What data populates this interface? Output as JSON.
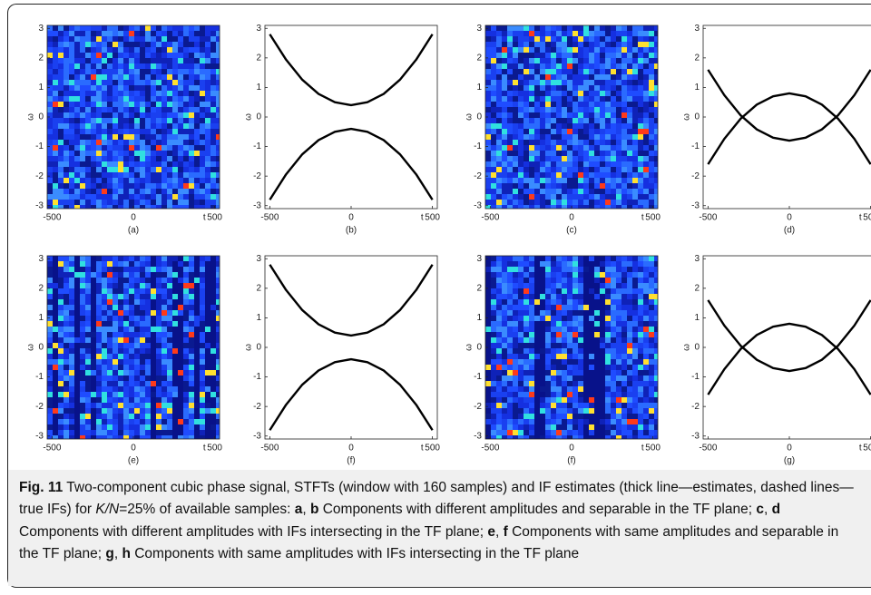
{
  "figure": {
    "xlim": [
      -530,
      530
    ],
    "ylim": [
      -3.1,
      3.1
    ],
    "xticks": [
      -500,
      0,
      500
    ],
    "yticks": [
      -3,
      -2,
      -1,
      0,
      1,
      2,
      3
    ],
    "xlabel": "t",
    "ylabel": "ω",
    "x": [
      -500,
      -400,
      -300,
      -200,
      -100,
      0,
      100,
      200,
      300,
      400,
      500
    ],
    "panels": [
      {
        "type": "heatmap",
        "label": "(a)"
      },
      {
        "type": "line",
        "label": "(b)",
        "series": [
          {
            "color": "#000000",
            "values": [
              2.8,
              1.94,
              1.26,
              0.78,
              0.5,
              0.4,
              0.5,
              0.78,
              1.26,
              1.94,
              2.8
            ]
          },
          {
            "color": "#000000",
            "values": [
              -2.8,
              -1.94,
              -1.26,
              -0.78,
              -0.5,
              -0.4,
              -0.5,
              -0.78,
              -1.26,
              -1.94,
              -2.8
            ]
          }
        ]
      },
      {
        "type": "heatmap",
        "label": "(c)"
      },
      {
        "type": "line",
        "label": "(d)",
        "series": [
          {
            "color": "#000000",
            "values": [
              -1.6,
              -0.74,
              -0.06,
              0.42,
              0.7,
              0.8,
              0.7,
              0.42,
              -0.06,
              -0.74,
              -1.6
            ]
          },
          {
            "color": "#000000",
            "values": [
              1.6,
              0.74,
              0.06,
              -0.42,
              -0.7,
              -0.8,
              -0.7,
              -0.42,
              0.06,
              0.74,
              1.6
            ]
          }
        ]
      },
      {
        "type": "heatmap",
        "label": "(e)",
        "stripes": true
      },
      {
        "type": "line",
        "label": "(f)",
        "series": [
          {
            "color": "#000000",
            "values": [
              2.8,
              1.94,
              1.26,
              0.78,
              0.5,
              0.4,
              0.5,
              0.78,
              1.26,
              1.94,
              2.8
            ]
          },
          {
            "color": "#000000",
            "values": [
              -2.8,
              -1.94,
              -1.26,
              -0.78,
              -0.5,
              -0.4,
              -0.5,
              -0.78,
              -1.26,
              -1.94,
              -2.8
            ]
          }
        ]
      },
      {
        "type": "heatmap",
        "label": "(f)",
        "stripes": true
      },
      {
        "type": "line",
        "label": "(g)",
        "series": [
          {
            "color": "#000000",
            "values": [
              -1.6,
              -0.74,
              -0.06,
              0.42,
              0.7,
              0.8,
              0.7,
              0.42,
              -0.06,
              -0.74,
              -1.6
            ]
          },
          {
            "color": "#000000",
            "values": [
              1.6,
              0.74,
              0.06,
              -0.42,
              -0.7,
              -0.8,
              -0.7,
              -0.42,
              0.06,
              0.74,
              1.6
            ]
          }
        ]
      }
    ]
  },
  "caption": {
    "label": "Fig. 11",
    "parts": [
      " Two-component cubic phase signal, STFTs (window with 160 samples) and IF estimates (thick line—estimates, dashed lines—true IFs) for ",
      "K/N",
      "=25% of available samples: ",
      "a",
      ", ",
      "b",
      " Components with different amplitudes and separable in the TF plane; ",
      "c",
      ", ",
      "d",
      " Components with different amplitudes with IFs intersecting in the TF plane; ",
      "e",
      ", ",
      "f",
      " Components with same amplitudes and separable in the TF plane; ",
      "g",
      ", ",
      "h",
      " Components with same amplitudes with IFs intersecting in the TF plane"
    ]
  }
}
